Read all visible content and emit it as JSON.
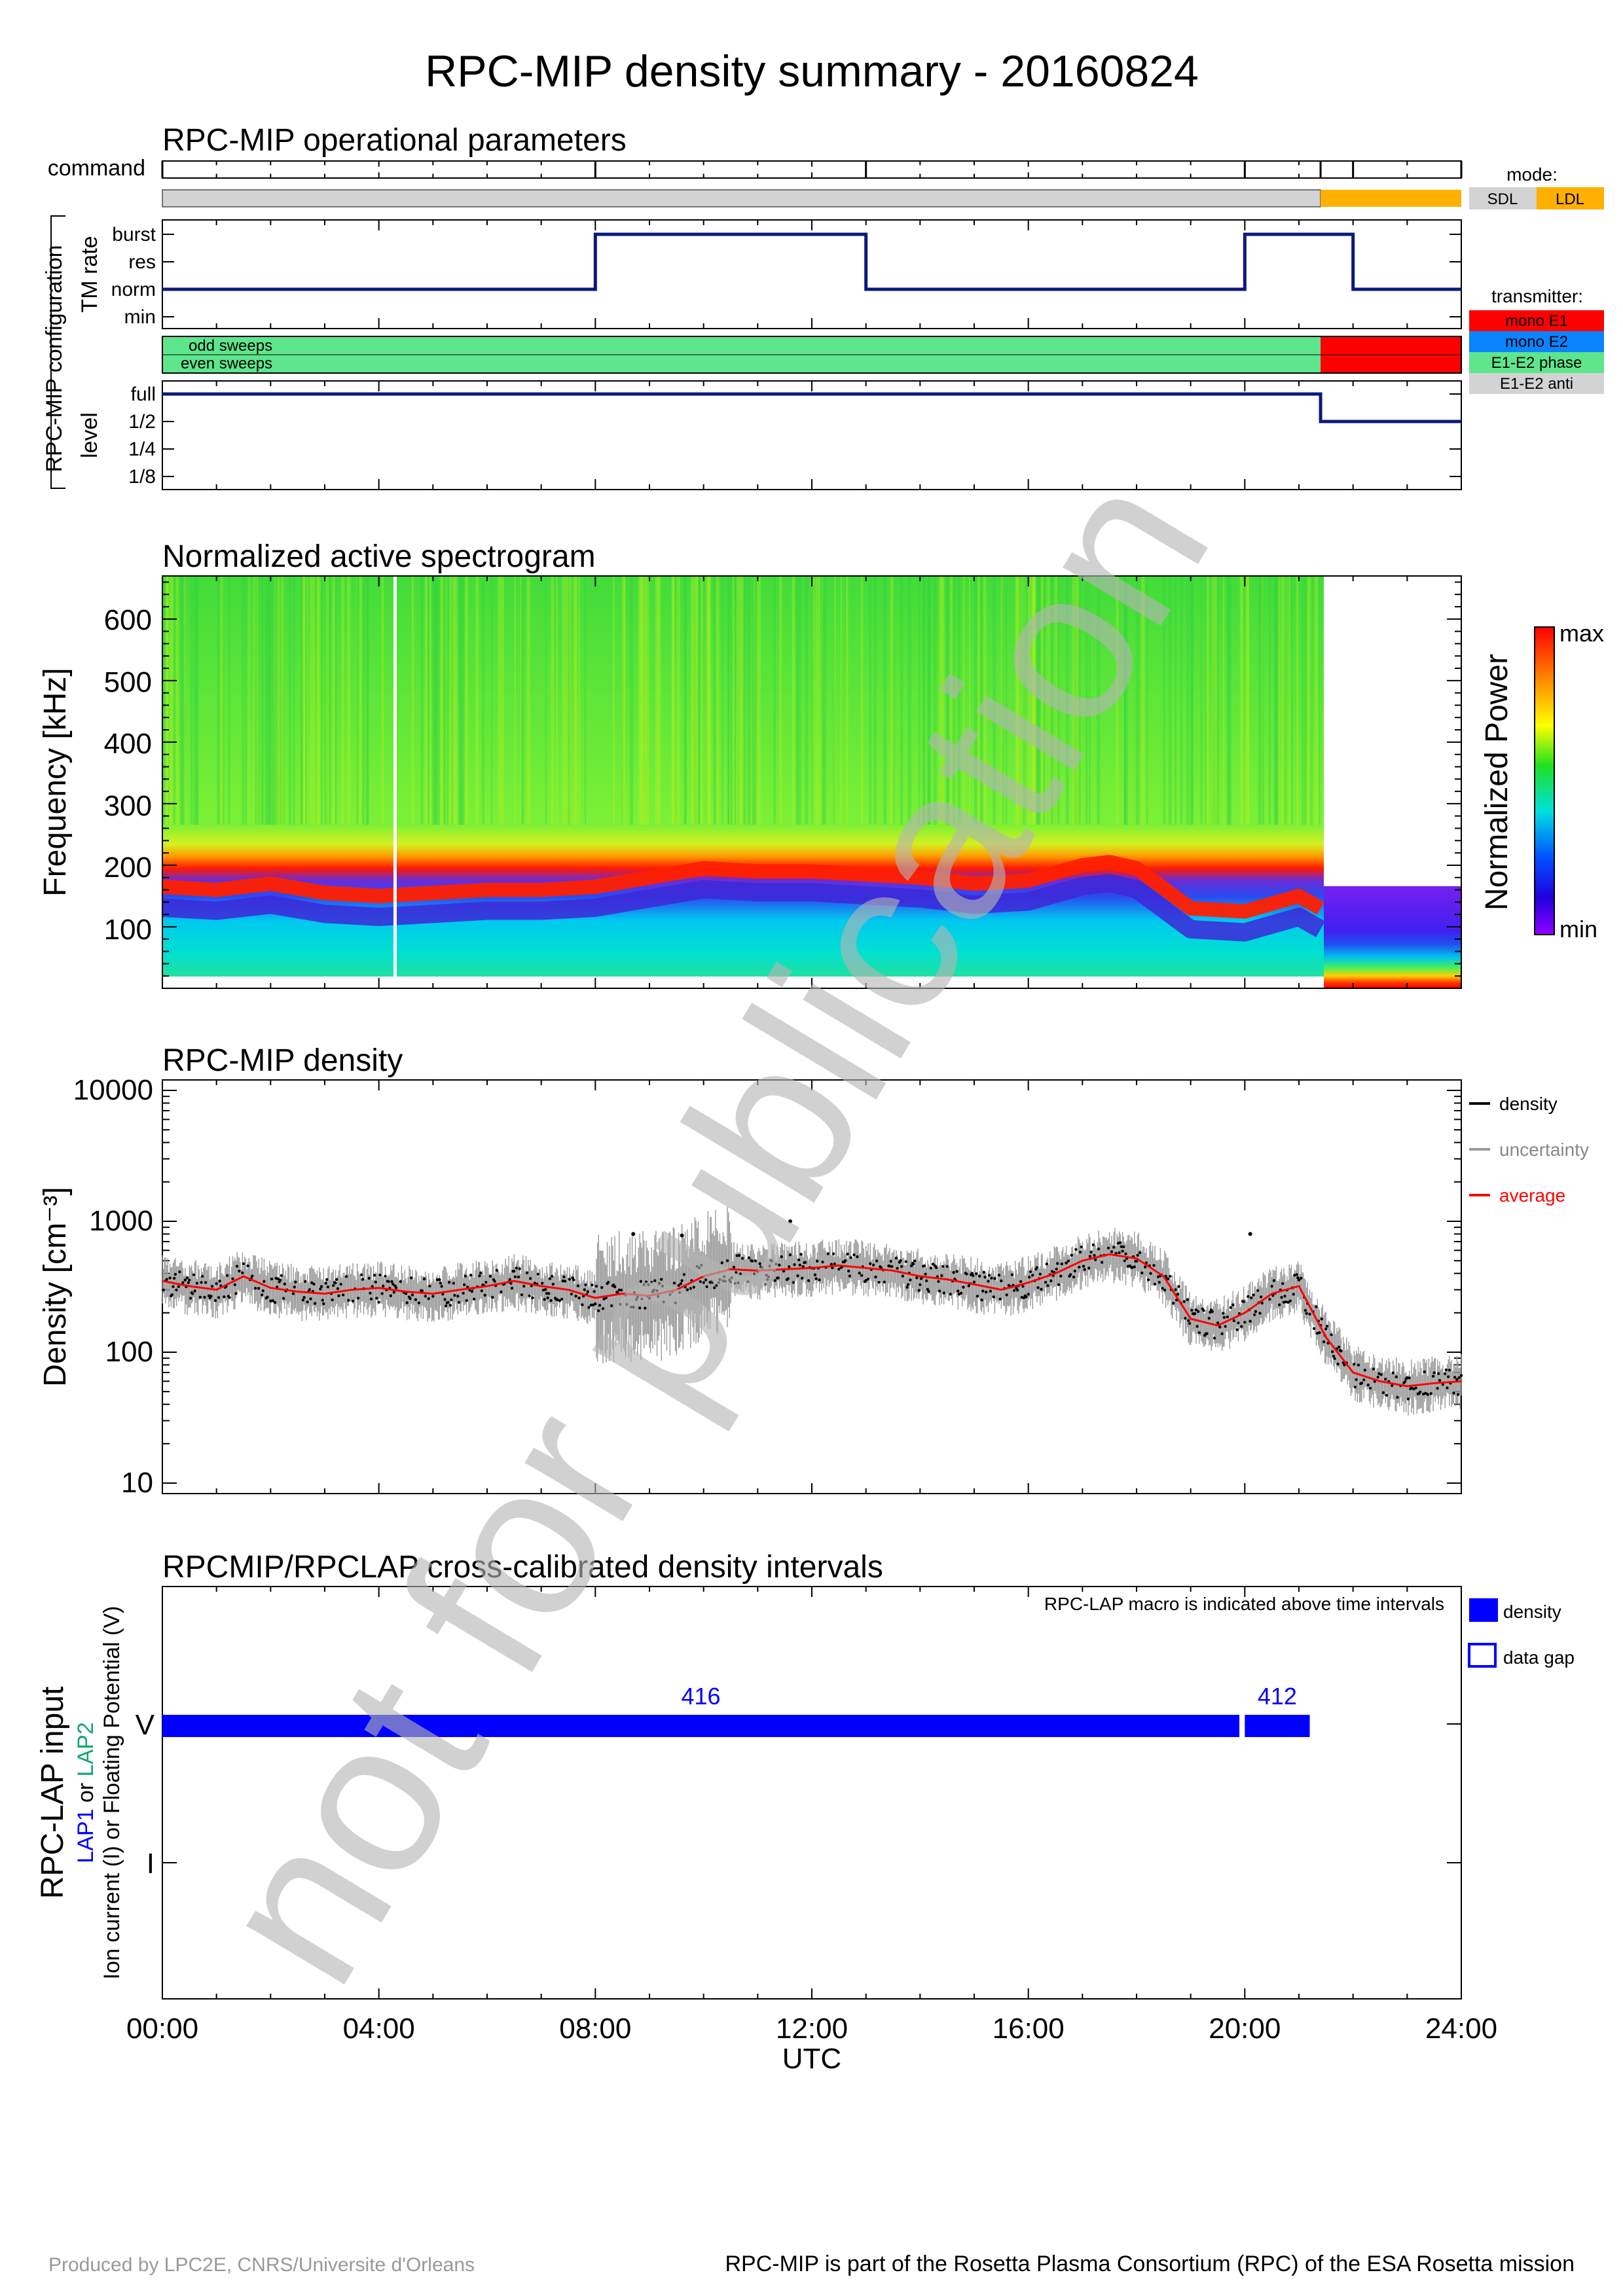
{
  "title": "RPC-MIP density summary - 20160824",
  "footer": {
    "left": "Produced by LPC2E, CNRS/Universite d'Orleans",
    "right": "RPC-MIP is part of the Rosetta Plasma Consortium (RPC) of the ESA Rosetta mission"
  },
  "watermark": "not for publication",
  "time_axis": {
    "ticks": [
      "00:00",
      "04:00",
      "08:00",
      "12:00",
      "16:00",
      "20:00",
      "24:00"
    ],
    "label": "UTC"
  },
  "ops": {
    "title": "RPC-MIP operational parameters",
    "command_label": "command",
    "config_label": "RPC-MIP configuration",
    "tm_label": "TM rate",
    "level_label": "level",
    "tm_ticks": [
      "burst",
      "res",
      "norm",
      "min"
    ],
    "sweep_labels": [
      "odd sweeps",
      "even sweeps"
    ],
    "level_ticks": [
      "full",
      "1/2",
      "1/4",
      "1/8"
    ],
    "mode_legend": {
      "title": "mode:",
      "items": [
        {
          "label": "SDL",
          "color": "#d3d3d3"
        },
        {
          "label": "LDL",
          "color": "#ffb000"
        }
      ]
    },
    "transmitter_legend": {
      "title": "transmitter:",
      "items": [
        {
          "label": "mono E1",
          "color": "#ff0000"
        },
        {
          "label": "mono E2",
          "color": "#0a84ff"
        },
        {
          "label": "E1-E2 phase",
          "color": "#5ee68c"
        },
        {
          "label": "E1-E2 anti",
          "color": "#d3d3d3"
        }
      ]
    }
  },
  "spectrogram": {
    "title": "Normalized active spectrogram",
    "ylabel": "Frequency [kHz]",
    "yticks": [
      "600",
      "500",
      "400",
      "300",
      "200",
      "100"
    ],
    "colorbar_label": "Normalized Power",
    "colorbar_max": "max",
    "colorbar_min": "min"
  },
  "density_panel": {
    "title": "RPC-MIP density",
    "ylabel": "Density [cm⁻³]",
    "yticks": [
      "10000",
      "1000",
      "100",
      "10"
    ],
    "legend": [
      {
        "label": "density",
        "color": "#000000"
      },
      {
        "label": "uncertainty",
        "color": "#999999"
      },
      {
        "label": "average",
        "color": "#ff0000"
      }
    ]
  },
  "lap_panel": {
    "title": "RPCMIP/RPCLAP cross-calibrated density intervals",
    "note": "RPC-LAP macro is indicated above time intervals",
    "ylabel_main": "RPC-LAP input",
    "ylabel_sub1a": "LAP1",
    "ylabel_sub1b": "or",
    "ylabel_sub1c": "LAP2",
    "ylabel_sub2": "Ion current (I) or Floating Potential (V)",
    "yticks": [
      "V",
      "I"
    ],
    "legend": [
      {
        "label": "density",
        "filled": true
      },
      {
        "label": "data gap",
        "filled": false
      }
    ]
  },
  "chart_data": [
    {
      "type": "line",
      "title": "RPC-MIP operational parameters",
      "x_unit": "hours UTC",
      "xlim": [
        0,
        24
      ],
      "command_times": [
        0,
        8.0,
        13.0,
        20.0,
        21.4,
        22.0,
        24.0
      ],
      "mode": [
        {
          "start": 0,
          "end": 21.4,
          "value": "SDL"
        },
        {
          "start": 21.4,
          "end": 24,
          "value": "LDL"
        }
      ],
      "tm_rate": [
        {
          "start": 0,
          "end": 8.0,
          "value": "norm"
        },
        {
          "start": 8.0,
          "end": 13.0,
          "value": "burst"
        },
        {
          "start": 13.0,
          "end": 20.0,
          "value": "norm"
        },
        {
          "start": 20.0,
          "end": 22.0,
          "value": "burst"
        },
        {
          "start": 22.0,
          "end": 24,
          "value": "norm"
        }
      ],
      "transmitter": [
        {
          "start": 0,
          "end": 21.4,
          "value": "E1-E2 phase"
        },
        {
          "start": 21.4,
          "end": 24,
          "value": "mono E1"
        }
      ],
      "level": [
        {
          "start": 0,
          "end": 21.4,
          "value": "full"
        },
        {
          "start": 21.4,
          "end": 24,
          "value": "1/2"
        }
      ]
    },
    {
      "type": "heatmap",
      "title": "Normalized active spectrogram",
      "ylabel": "Frequency [kHz]",
      "xlim": [
        0,
        24
      ],
      "ylim": [
        0,
        670
      ],
      "sdl_freq_range": [
        30,
        670
      ],
      "ldl_freq_range": [
        0,
        170
      ],
      "data_gap_times": [
        4.3
      ],
      "ridge_frequency_kHz": {
        "t": [
          0,
          1,
          2,
          3,
          4,
          5,
          6,
          7,
          8,
          9,
          10,
          11,
          12,
          13,
          14,
          15,
          16,
          17,
          17.5,
          18,
          19,
          20,
          21,
          21.4
        ],
        "f": [
          165,
          160,
          170,
          155,
          150,
          155,
          160,
          160,
          165,
          180,
          195,
          190,
          190,
          185,
          180,
          170,
          175,
          200,
          205,
          195,
          130,
          125,
          150,
          130
        ]
      }
    },
    {
      "type": "scatter",
      "title": "RPC-MIP density",
      "ylabel": "Density [cm-3]",
      "yscale": "log",
      "ylim": [
        10,
        10000
      ],
      "xlim": [
        0,
        24
      ],
      "series": [
        {
          "name": "average",
          "x": [
            0,
            0.5,
            1,
            1.5,
            2,
            2.5,
            3,
            3.5,
            4,
            4.5,
            5,
            5.5,
            6,
            6.5,
            7,
            7.5,
            8,
            8.5,
            9,
            9.5,
            10,
            10.5,
            11,
            11.5,
            12,
            12.5,
            13,
            13.5,
            14,
            14.5,
            15,
            15.5,
            16,
            16.5,
            17,
            17.5,
            18,
            18.5,
            19,
            19.5,
            20,
            20.5,
            21,
            21.5,
            22,
            22.5,
            23,
            23.5,
            24
          ],
          "y": [
            350,
            320,
            300,
            380,
            310,
            290,
            280,
            300,
            310,
            290,
            280,
            300,
            320,
            350,
            320,
            300,
            260,
            280,
            270,
            300,
            380,
            430,
            420,
            430,
            440,
            460,
            440,
            420,
            380,
            360,
            330,
            300,
            340,
            400,
            500,
            560,
            520,
            380,
            180,
            160,
            200,
            280,
            320,
            130,
            70,
            60,
            55,
            58,
            60
          ]
        }
      ],
      "outliers": [
        {
          "x": 8.7,
          "y": 800
        },
        {
          "x": 9.6,
          "y": 780
        },
        {
          "x": 11.6,
          "y": 1000
        },
        {
          "x": 20.1,
          "y": 800
        }
      ]
    },
    {
      "type": "bar",
      "title": "RPCMIP/RPCLAP cross-calibrated density intervals",
      "ylabel": "RPC-LAP input",
      "xlim": [
        0,
        24
      ],
      "intervals": [
        {
          "start": 0,
          "end": 19.9,
          "input": "V",
          "macro": "416"
        },
        {
          "start": 20.0,
          "end": 21.2,
          "input": "V",
          "macro": "412"
        }
      ]
    }
  ]
}
